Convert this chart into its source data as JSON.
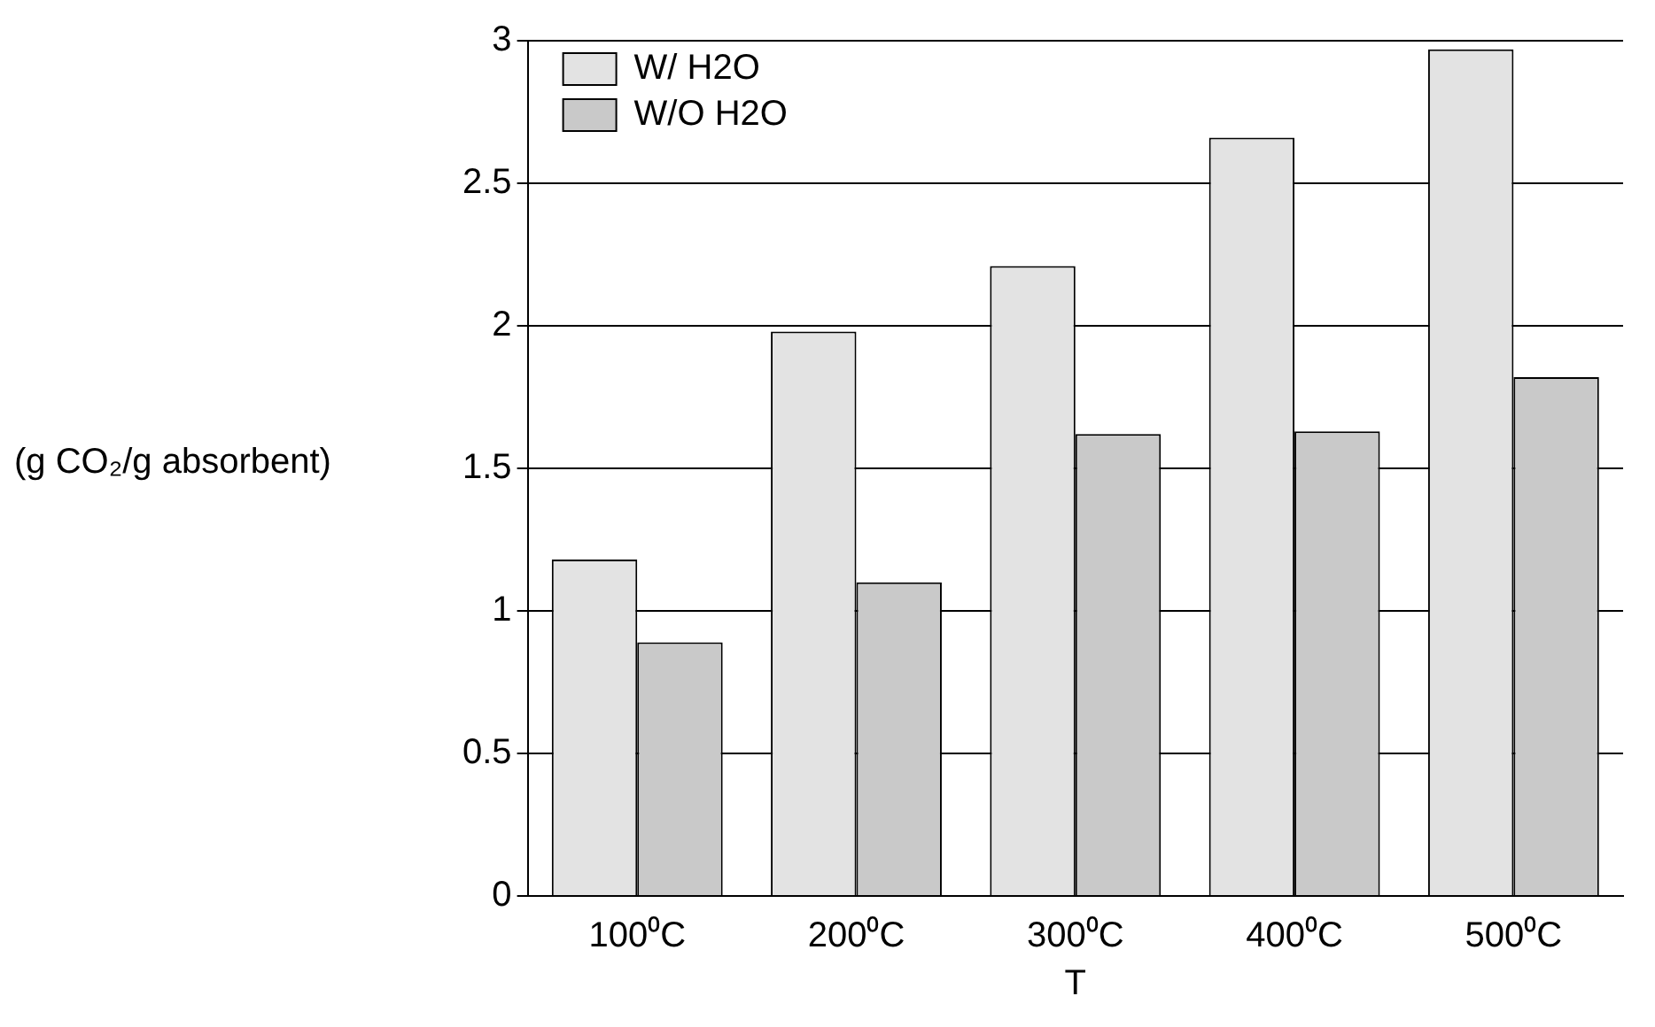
{
  "chart_data": {
    "type": "bar",
    "xlabel": "T",
    "ylabel": "(g CO₂/g absorbent)",
    "categories": [
      "100⁰C",
      "200⁰C",
      "300⁰C",
      "400⁰C",
      "500⁰C"
    ],
    "series": [
      {
        "name": "W/ H2O",
        "color": "#e3e3e3",
        "values": [
          1.18,
          1.98,
          2.21,
          2.66,
          2.97
        ]
      },
      {
        "name": "W/O H2O",
        "color": "#c9c9c9",
        "values": [
          0.89,
          1.1,
          1.62,
          1.63,
          1.82
        ]
      }
    ],
    "ylim": [
      0,
      3
    ],
    "yticks": [
      0,
      0.5,
      1,
      1.5,
      2,
      2.5,
      3
    ],
    "grid": "y",
    "legend": "top left"
  }
}
